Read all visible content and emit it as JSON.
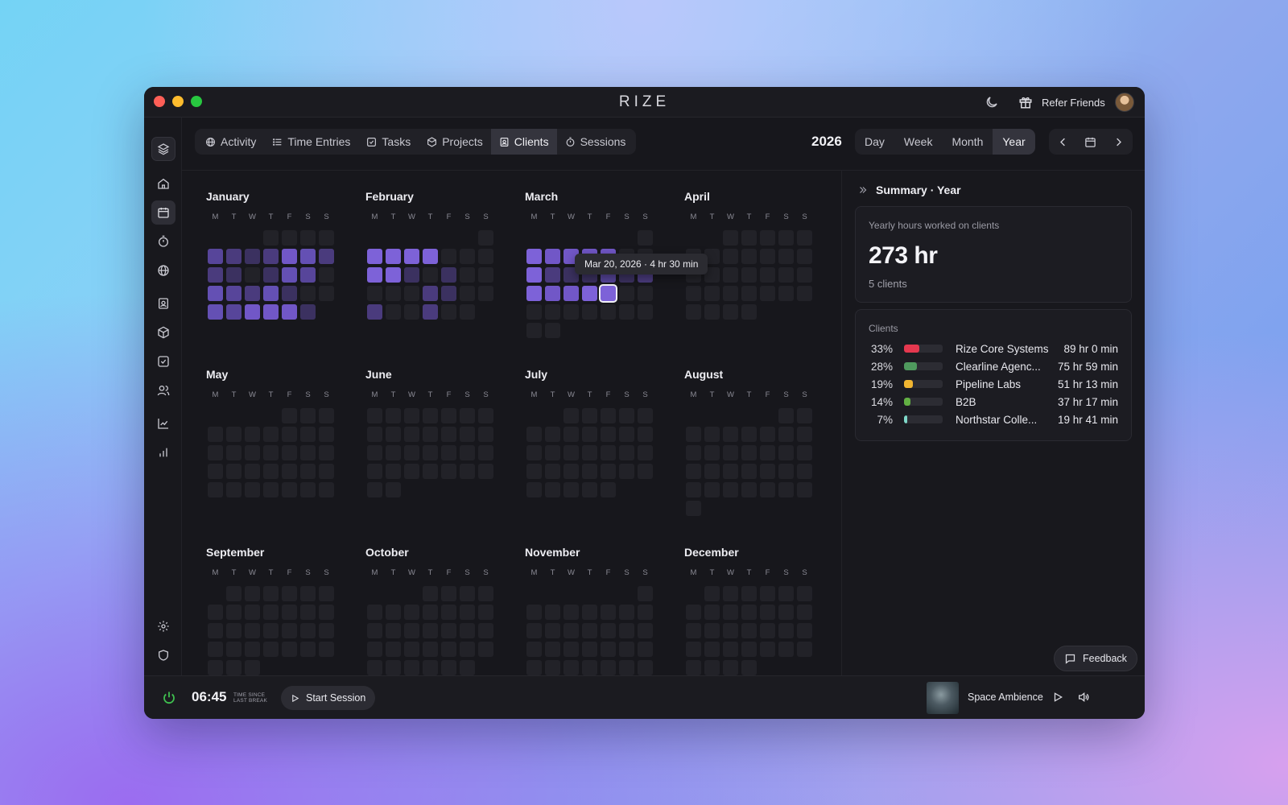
{
  "window": {
    "app_title": "RIZE",
    "refer_label": "Refer Friends"
  },
  "sidebar": {
    "icons": [
      "layers-icon",
      "home-icon",
      "calendar-icon",
      "timer-icon",
      "globe-icon",
      "contact-icon",
      "box-icon",
      "checkbox-icon",
      "users-icon",
      "trend-icon",
      "bar-chart-icon",
      "settings-icon",
      "shield-icon"
    ],
    "active": "calendar-icon"
  },
  "tabs": [
    {
      "label": "Activity",
      "icon": "globe-icon"
    },
    {
      "label": "Time Entries",
      "icon": "list-icon"
    },
    {
      "label": "Tasks",
      "icon": "checkbox-icon"
    },
    {
      "label": "Projects",
      "icon": "box-icon"
    },
    {
      "label": "Clients",
      "icon": "contact-icon",
      "active": true
    },
    {
      "label": "Sessions",
      "icon": "timer-icon"
    }
  ],
  "year": "2026",
  "ranges": [
    {
      "label": "Day"
    },
    {
      "label": "Week"
    },
    {
      "label": "Month"
    },
    {
      "label": "Year",
      "active": true
    }
  ],
  "weekday_letters": [
    "M",
    "T",
    "W",
    "T",
    "F",
    "S",
    "S"
  ],
  "months": [
    {
      "name": "January",
      "first_weekday": 3,
      "days": 31,
      "levels": {
        "5": 3,
        "6": 2,
        "7": 1,
        "8": 2,
        "9": 5,
        "10": 4,
        "11": 2,
        "12": 2,
        "13": 1,
        "15": 1,
        "16": 4,
        "17": 3,
        "19": 4,
        "20": 3,
        "21": 2,
        "22": 4,
        "23": 1,
        "26": 4,
        "27": 3,
        "28": 5,
        "29": 5,
        "30": 5,
        "31": 1
      }
    },
    {
      "name": "February",
      "first_weekday": 6,
      "days": 28,
      "levels": {
        "2": 6,
        "3": 6,
        "4": 6,
        "5": 6,
        "9": 6,
        "10": 6,
        "11": 1,
        "13": 1,
        "19": 2,
        "20": 1,
        "23": 2,
        "26": 2
      }
    },
    {
      "name": "March",
      "first_weekday": 6,
      "days": 31,
      "levels": {
        "2": 6,
        "3": 5,
        "4": 5,
        "5": 5,
        "6": 5,
        "9": 6,
        "10": 2,
        "11": 1,
        "12": 1,
        "13": 3,
        "14": 1,
        "15": 2,
        "16": 6,
        "17": 5,
        "18": 5,
        "19": 6,
        "20": 6
      }
    },
    {
      "name": "April",
      "first_weekday": 2,
      "days": 30,
      "levels": {}
    },
    {
      "name": "May",
      "first_weekday": 4,
      "days": 31,
      "levels": {}
    },
    {
      "name": "June",
      "first_weekday": 0,
      "days": 30,
      "levels": {}
    },
    {
      "name": "July",
      "first_weekday": 2,
      "days": 31,
      "levels": {}
    },
    {
      "name": "August",
      "first_weekday": 5,
      "days": 31,
      "levels": {}
    },
    {
      "name": "September",
      "first_weekday": 1,
      "days": 30,
      "levels": {}
    },
    {
      "name": "October",
      "first_weekday": 3,
      "days": 31,
      "levels": {}
    },
    {
      "name": "November",
      "first_weekday": 6,
      "days": 30,
      "levels": {}
    },
    {
      "name": "December",
      "first_weekday": 1,
      "days": 31,
      "levels": {}
    }
  ],
  "heat_colors": [
    "#222228",
    "#3b3160",
    "#4a3b7d",
    "#57459a",
    "#6450b4",
    "#7157c7",
    "#7d62d8"
  ],
  "selected_day": {
    "month": "March",
    "day": 20
  },
  "tooltip": "Mar 20, 2026 · 4 hr 30 min",
  "summary": {
    "title": "Summary · Year",
    "yearly_label": "Yearly hours worked on clients",
    "total": "273 hr",
    "client_count": "5 clients",
    "clients_label": "Clients",
    "clients": [
      {
        "pct": "33%",
        "share": 0.33,
        "color": "#e5384f",
        "name": "Rize Core Systems",
        "time": "89 hr 0 min"
      },
      {
        "pct": "28%",
        "share": 0.28,
        "color": "#4f9a5e",
        "name": "Clearline Agenc...",
        "time": "75 hr 59 min"
      },
      {
        "pct": "19%",
        "share": 0.19,
        "color": "#f0b531",
        "name": "Pipeline Labs",
        "time": "51 hr 13 min"
      },
      {
        "pct": "14%",
        "share": 0.14,
        "color": "#62b043",
        "name": "B2B",
        "time": "37 hr 17 min"
      },
      {
        "pct": "7%",
        "share": 0.07,
        "color": "#7fd8c9",
        "name": "Northstar Colle...",
        "time": "19 hr 41 min"
      }
    ]
  },
  "feedback_label": "Feedback",
  "bottom": {
    "timer": "06:45",
    "since_line1": "Time since",
    "since_line2": "last break",
    "start_label": "Start Session",
    "track": "Space Ambience"
  }
}
